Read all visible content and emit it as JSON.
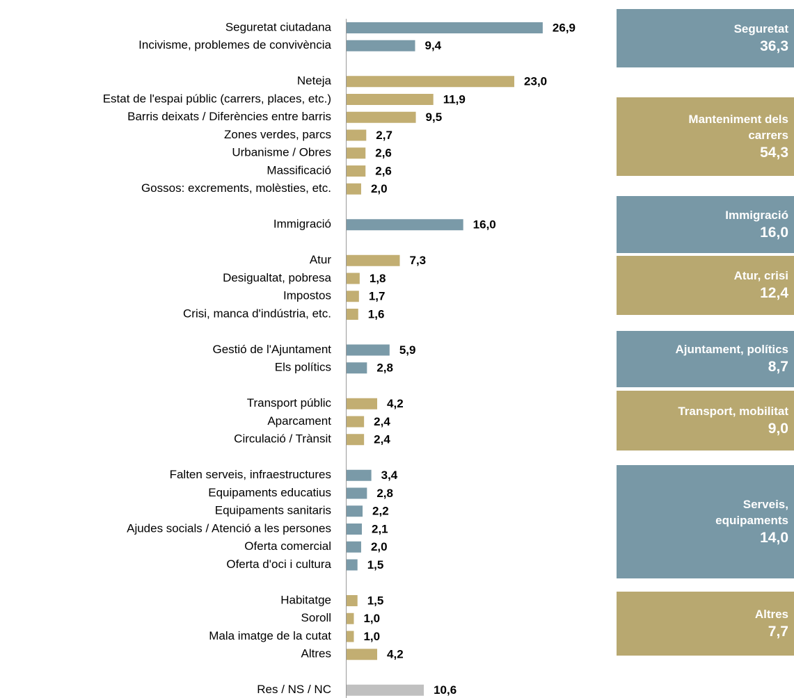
{
  "chart_data": {
    "type": "bar",
    "orientation": "horizontal",
    "groups": [
      {
        "label": "Seguretat",
        "value": 36.3,
        "value_label": "36,3",
        "color": "#7898a6",
        "bar_color": "#7a9aa8",
        "categories": [
          "Seguretat ciutadana",
          "Incivisme, problemes de convivència"
        ],
        "values": [
          26.9,
          9.4
        ],
        "value_labels": [
          "26,9",
          "9,4"
        ]
      },
      {
        "label": "Manteniment dels\ncarrers",
        "value": 54.3,
        "value_label": "54,3",
        "color": "#b8a870",
        "bar_color": "#c2ae72",
        "categories": [
          "Neteja",
          "Estat de l'espai públic (carrers, places, etc.)",
          "Barris deixats / Diferències entre barris",
          "Zones verdes, parcs",
          "Urbanisme / Obres",
          "Massificació",
          "Gossos: excrements, molèsties, etc."
        ],
        "values": [
          23.0,
          11.9,
          9.5,
          2.7,
          2.6,
          2.6,
          2.0
        ],
        "value_labels": [
          "23,0",
          "11,9",
          "9,5",
          "2,7",
          "2,6",
          "2,6",
          "2,0"
        ]
      },
      {
        "label": "Immigració",
        "value": 16.0,
        "value_label": "16,0",
        "color": "#7898a6",
        "bar_color": "#7a9aa8",
        "categories": [
          "Immigració"
        ],
        "values": [
          16.0
        ],
        "value_labels": [
          "16,0"
        ]
      },
      {
        "label": "Atur, crisi",
        "value": 12.4,
        "value_label": "12,4",
        "color": "#b8a870",
        "bar_color": "#c2ae72",
        "categories": [
          "Atur",
          "Desigualtat, pobresa",
          "Impostos",
          "Crisi, manca d'indústria, etc."
        ],
        "values": [
          7.3,
          1.8,
          1.7,
          1.6
        ],
        "value_labels": [
          "7,3",
          "1,8",
          "1,7",
          "1,6"
        ]
      },
      {
        "label": "Ajuntament, polítics",
        "value": 8.7,
        "value_label": "8,7",
        "color": "#7898a6",
        "bar_color": "#7a9aa8",
        "categories": [
          "Gestió de l'Ajuntament",
          "Els polítics"
        ],
        "values": [
          5.9,
          2.8
        ],
        "value_labels": [
          "5,9",
          "2,8"
        ]
      },
      {
        "label": "Transport, mobilitat",
        "value": 9.0,
        "value_label": "9,0",
        "color": "#b8a870",
        "bar_color": "#c2ae72",
        "categories": [
          "Transport públic",
          "Aparcament",
          "Circulació / Trànsit"
        ],
        "values": [
          4.2,
          2.4,
          2.4
        ],
        "value_labels": [
          "4,2",
          "2,4",
          "2,4"
        ]
      },
      {
        "label": "Serveis,\nequipaments",
        "value": 14.0,
        "value_label": "14,0",
        "color": "#7898a6",
        "bar_color": "#7a9aa8",
        "categories": [
          "Falten serveis, infraestructures",
          "Equipaments educatius",
          "Equipaments sanitaris",
          "Ajudes socials / Atenció a les persones",
          "Oferta comercial",
          "Oferta d'oci i cultura"
        ],
        "values": [
          3.4,
          2.8,
          2.2,
          2.1,
          2.0,
          1.5
        ],
        "value_labels": [
          "3,4",
          "2,8",
          "2,2",
          "2,1",
          "2,0",
          "1,5"
        ]
      },
      {
        "label": "Altres",
        "value": 7.7,
        "value_label": "7,7",
        "color": "#b8a870",
        "bar_color": "#c2ae72",
        "categories": [
          "Habitatge",
          "Soroll",
          "Mala imatge de la cutat",
          "Altres"
        ],
        "values": [
          1.5,
          1.0,
          1.0,
          4.2
        ],
        "value_labels": [
          "1,5",
          "1,0",
          "1,0",
          "4,2"
        ]
      },
      {
        "bar_color": "#c0c0c0",
        "categories": [
          "Res / NS / NC"
        ],
        "values": [
          10.6
        ],
        "value_labels": [
          "10,6"
        ]
      }
    ]
  }
}
